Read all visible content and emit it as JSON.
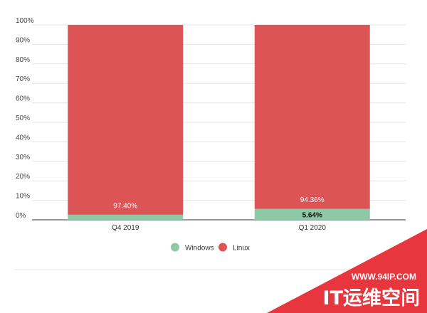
{
  "chart_data": {
    "type": "bar",
    "stacked": true,
    "categories": [
      "Q4 2019",
      "Q1 2020"
    ],
    "series": [
      {
        "name": "Windows",
        "values": [
          2.6,
          5.64
        ],
        "color": "#8fc8a6"
      },
      {
        "name": "Linux",
        "values": [
          97.4,
          94.36
        ],
        "color": "#dc5456"
      }
    ],
    "data_labels": {
      "Windows": [
        "",
        "5.64%"
      ],
      "Linux": [
        "97.40%",
        "94.36%"
      ]
    },
    "yticks": [
      "0%",
      "10%",
      "20%",
      "30%",
      "40%",
      "50%",
      "60%",
      "70%",
      "80%",
      "90%",
      "100%"
    ],
    "ylim": [
      0,
      100
    ],
    "grid": true,
    "legend_position": "bottom"
  },
  "watermark": {
    "url": "WWW.94IP.COM",
    "text": "IT运维空间",
    "color": "#e8363e"
  }
}
